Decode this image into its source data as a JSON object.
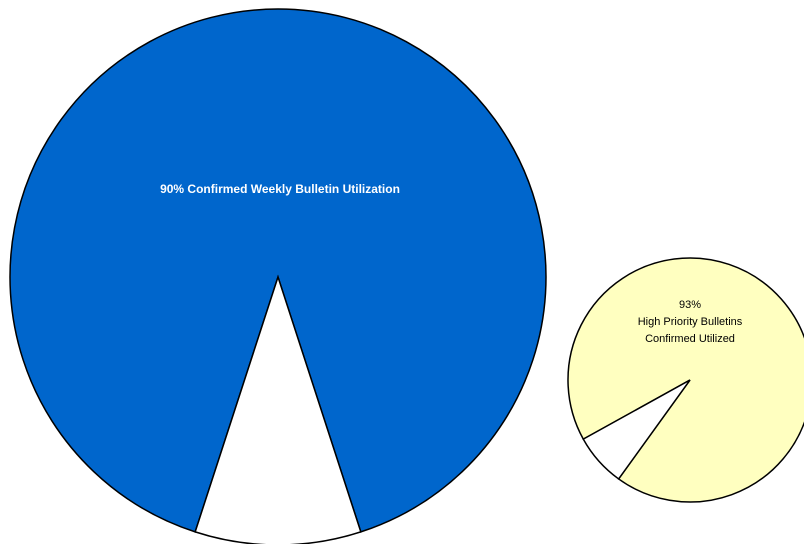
{
  "chart_data": [
    {
      "type": "pie",
      "labels": [
        "90% Confirmed Weekly Bulletin Utilization",
        null
      ],
      "values": [
        90,
        10
      ],
      "colors": [
        "#0066cc",
        "#ffffff"
      ]
    },
    {
      "type": "pie",
      "labels": [
        [
          "93%",
          "High Priority Bulletins",
          "Confirmed Utilized"
        ],
        null
      ],
      "values": [
        93,
        7
      ],
      "colors": [
        "#ffffc0",
        "#ffffff"
      ]
    }
  ]
}
